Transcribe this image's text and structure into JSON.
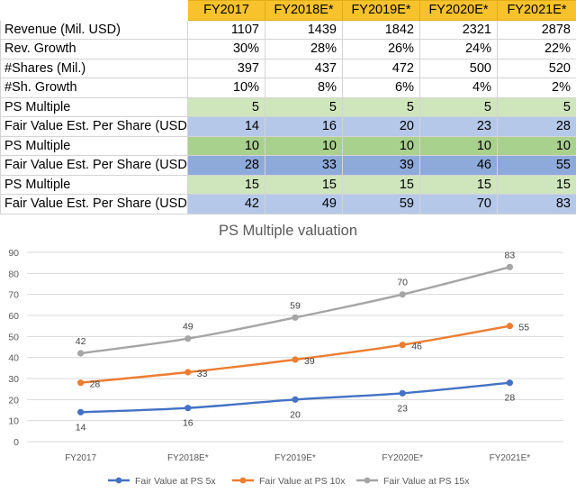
{
  "table": {
    "headers": [
      "",
      "FY2017",
      "FY2018E*",
      "FY2019E*",
      "FY2020E*",
      "FY2021E*"
    ],
    "rows": [
      {
        "label": "Revenue (Mil. USD)",
        "values": [
          "1107",
          "1439",
          "1842",
          "2321",
          "2878"
        ]
      },
      {
        "label": "Rev. Growth",
        "values": [
          "30%",
          "28%",
          "26%",
          "24%",
          "22%"
        ]
      },
      {
        "label": "#Shares (Mil.)",
        "values": [
          "397",
          "437",
          "472",
          "500",
          "520"
        ]
      },
      {
        "label": "#Sh. Growth",
        "values": [
          "10%",
          "8%",
          "6%",
          "4%",
          "2%"
        ]
      },
      {
        "label": "PS Multiple",
        "values": [
          "5",
          "5",
          "5",
          "5",
          "5"
        ]
      },
      {
        "label": "Fair Value Est. Per Share (USD)",
        "values": [
          "14",
          "16",
          "20",
          "23",
          "28"
        ]
      },
      {
        "label": "PS Multiple",
        "values": [
          "10",
          "10",
          "10",
          "10",
          "10"
        ]
      },
      {
        "label": "Fair Value Est. Per Share (USD)",
        "values": [
          "28",
          "33",
          "39",
          "46",
          "55"
        ]
      },
      {
        "label": "PS Multiple",
        "values": [
          "15",
          "15",
          "15",
          "15",
          "15"
        ]
      },
      {
        "label": "Fair Value Est. Per Share (USD)",
        "values": [
          "42",
          "49",
          "59",
          "70",
          "83"
        ]
      }
    ]
  },
  "colors": {
    "header_fill": "#f7c22b",
    "series_5x": "#4472c4",
    "series_10x": "#ed7d31",
    "series_15x": "#a5a5a5"
  },
  "chart_data": {
    "type": "line",
    "title": "PS Multiple valuation",
    "categories": [
      "FY2017",
      "FY2018E*",
      "FY2019E*",
      "FY2020E*",
      "FY2021E*"
    ],
    "yticks": [
      "0",
      "10",
      "20",
      "30",
      "40",
      "50",
      "60",
      "70",
      "80",
      "90"
    ],
    "ylim": [
      0,
      90
    ],
    "xlabel": "",
    "ylabel": "",
    "grid": true,
    "legend_position": "bottom",
    "series": [
      {
        "name": "Fair Value at PS 5x",
        "values": [
          14,
          16,
          20,
          23,
          28
        ],
        "labels": [
          "14",
          "16",
          "20",
          "23",
          "28"
        ],
        "label_pos": "below"
      },
      {
        "name": "Fair Value at PS 10x",
        "values": [
          28,
          33,
          39,
          46,
          55
        ],
        "labels": [
          "28",
          "33",
          "39",
          "46",
          "55"
        ],
        "label_pos": "right"
      },
      {
        "name": "Fair Value at PS 15x",
        "values": [
          42,
          49,
          59,
          70,
          83
        ],
        "labels": [
          "42",
          "49",
          "59",
          "70",
          "83"
        ],
        "label_pos": "above"
      }
    ]
  }
}
